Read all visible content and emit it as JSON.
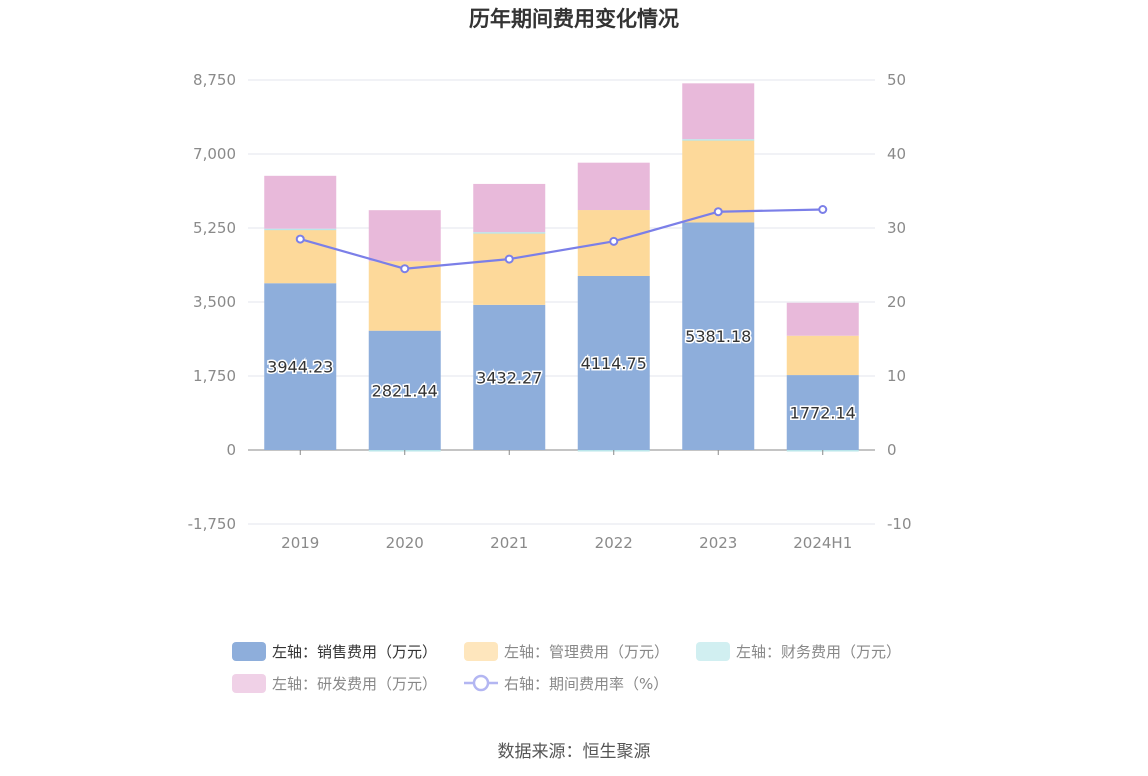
{
  "chart_data": {
    "type": "bar",
    "title": "历年期间费用变化情况",
    "categories": [
      "2019",
      "2020",
      "2021",
      "2022",
      "2023",
      "2024H1"
    ],
    "series": [
      {
        "name": "左轴：销售费用（万元）",
        "axis": "left",
        "stack": true,
        "color": "#8eaedb",
        "values": [
          3944.23,
          2821.44,
          3432.27,
          4114.75,
          5381.18,
          1772.14
        ],
        "labels": [
          "3944.23",
          "2821.44",
          "3432.27",
          "4114.75",
          "5381.18",
          "1772.14"
        ]
      },
      {
        "name": "左轴：管理费用（万元）",
        "axis": "left",
        "stack": true,
        "color": "#fdd99a",
        "values": [
          1260,
          1640,
          1690,
          1560,
          1940,
          930
        ]
      },
      {
        "name": "左轴：财务费用（万元）",
        "axis": "left",
        "stack": true,
        "color": "#b9e6ea",
        "values": [
          30,
          -20,
          30,
          -20,
          30,
          -20
        ]
      },
      {
        "name": "左轴：研发费用（万元）",
        "axis": "left",
        "stack": true,
        "color": "#e8b9da",
        "values": [
          1250,
          1210,
          1140,
          1120,
          1320,
          780
        ]
      },
      {
        "name": "右轴：期间费用率（%）",
        "axis": "right",
        "type": "line",
        "color": "#7b7fe8",
        "values": [
          28.5,
          24.5,
          25.8,
          28.2,
          32.2,
          32.5
        ]
      }
    ],
    "y_left": {
      "ticks": [
        "8,750",
        "7,000",
        "5,250",
        "3,500",
        "1,750",
        "0",
        "-1,750"
      ],
      "range": [
        -1750,
        8750
      ]
    },
    "y_right": {
      "ticks": [
        "50",
        "40",
        "30",
        "20",
        "10",
        "0",
        "-10"
      ],
      "range": [
        -10,
        50
      ]
    },
    "grid": true,
    "legend_position": "bottom"
  },
  "source_text": "数据来源：恒生聚源"
}
